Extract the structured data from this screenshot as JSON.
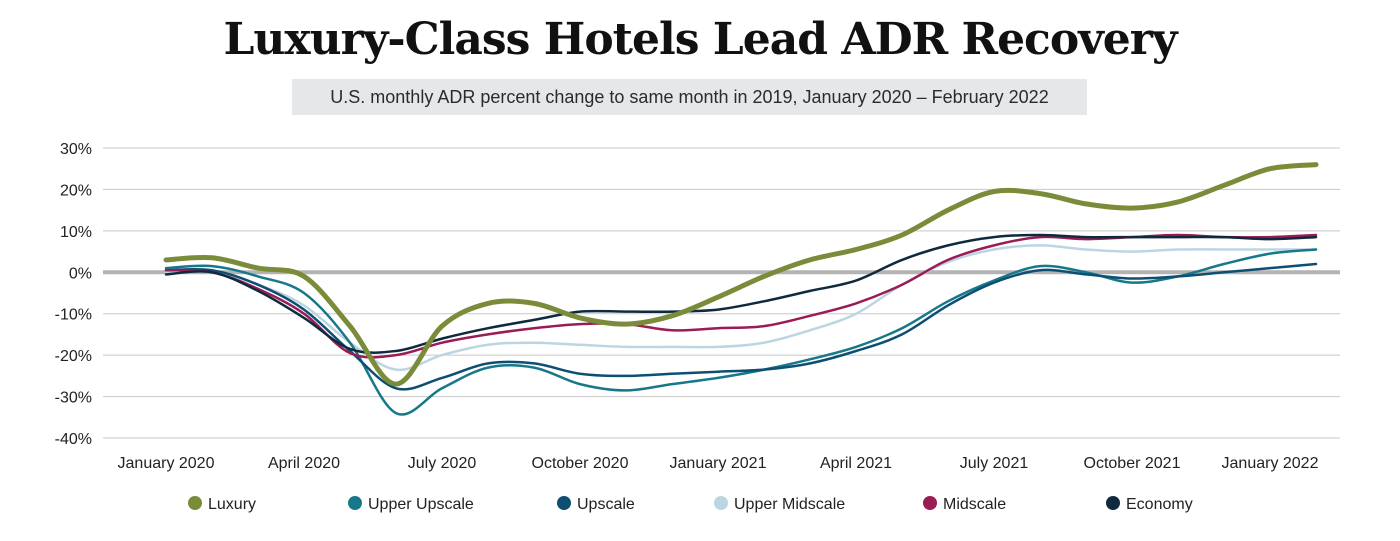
{
  "title": "Luxury-Class Hotels Lead ADR Recovery",
  "subtitle": "U.S. monthly ADR percent change to same month in 2019, January 2020 – February 2022",
  "chart_data": {
    "type": "line",
    "title": "Luxury-Class Hotels Lead ADR Recovery",
    "subtitle": "U.S. monthly ADR percent change to same month in 2019, January 2020 – February 2022",
    "xlabel": "",
    "ylabel": "",
    "ylim": [
      -40,
      30
    ],
    "y_ticks": [
      30,
      20,
      10,
      0,
      -10,
      -20,
      -30,
      -40
    ],
    "y_tick_labels": [
      "30%",
      "20%",
      "10%",
      "0%",
      "-10%",
      "-20%",
      "-30%",
      "-40%"
    ],
    "x": [
      "2020-01",
      "2020-02",
      "2020-03",
      "2020-04",
      "2020-05",
      "2020-06",
      "2020-07",
      "2020-08",
      "2020-09",
      "2020-10",
      "2020-11",
      "2020-12",
      "2021-01",
      "2021-02",
      "2021-03",
      "2021-04",
      "2021-05",
      "2021-06",
      "2021-07",
      "2021-08",
      "2021-09",
      "2021-10",
      "2021-11",
      "2021-12",
      "2022-01",
      "2022-02"
    ],
    "x_tick_labels": [
      "January 2020",
      "April 2020",
      "July 2020",
      "October 2020",
      "January 2021",
      "April 2021",
      "July 2021",
      "October 2021",
      "January 2022"
    ],
    "x_tick_index": [
      0,
      3,
      6,
      9,
      12,
      15,
      18,
      21,
      24
    ],
    "grid": true,
    "zero_line": true,
    "legend_position": "bottom",
    "series": [
      {
        "name": "Luxury",
        "color": "#7a8c3a",
        "values": [
          3,
          3.5,
          1,
          -1,
          -13,
          -27,
          -13,
          -7.5,
          -7.5,
          -11,
          -12.5,
          -10.5,
          -6,
          -1,
          3,
          5.5,
          9,
          15,
          19.5,
          19,
          16.5,
          15.5,
          17,
          21,
          25,
          26
        ]
      },
      {
        "name": "Upper Upscale",
        "color": "#17788a",
        "values": [
          1,
          1.5,
          -1,
          -5,
          -17,
          -34,
          -28,
          -23,
          -23,
          -27,
          -28.5,
          -27,
          -25.5,
          -23.5,
          -21,
          -18,
          -13.5,
          -7,
          -2,
          1.5,
          0,
          -2.5,
          -1,
          2,
          4.5,
          5.5
        ]
      },
      {
        "name": "Upscale",
        "color": "#0d4f73",
        "values": [
          0.5,
          0.5,
          -3,
          -9,
          -19,
          -28,
          -25.5,
          -22,
          -22,
          -24.5,
          -25,
          -24.5,
          -24,
          -23.5,
          -22,
          -19,
          -15,
          -8,
          -2.5,
          0.5,
          -0.5,
          -1.5,
          -1,
          0,
          1,
          2
        ]
      },
      {
        "name": "Upper Midscale",
        "color": "#bcd5e3",
        "values": [
          0,
          0,
          -3,
          -8,
          -17,
          -23.5,
          -20,
          -17.5,
          -17,
          -17.5,
          -18,
          -18,
          -18,
          -17,
          -14,
          -10,
          -3,
          2.5,
          5.5,
          6.5,
          5.5,
          5,
          5.5,
          5.5,
          5.5,
          5.5
        ]
      },
      {
        "name": "Midscale",
        "color": "#9b1b55",
        "values": [
          0.5,
          0,
          -4,
          -10,
          -19.5,
          -20,
          -17,
          -15,
          -13.5,
          -12.5,
          -12.5,
          -14,
          -13.5,
          -13,
          -10.5,
          -7.5,
          -3,
          3,
          6.5,
          8.5,
          8,
          8.5,
          9,
          8.5,
          8.5,
          9
        ]
      },
      {
        "name": "Economy",
        "color": "#102a3d",
        "values": [
          -0.5,
          0,
          -4.5,
          -11,
          -18.5,
          -19,
          -16,
          -13.5,
          -11.5,
          -9.5,
          -9.5,
          -9.5,
          -9,
          -7,
          -4.5,
          -2,
          3,
          6.5,
          8.5,
          9,
          8.5,
          8.5,
          8.5,
          8.5,
          8,
          8.5
        ]
      }
    ]
  }
}
